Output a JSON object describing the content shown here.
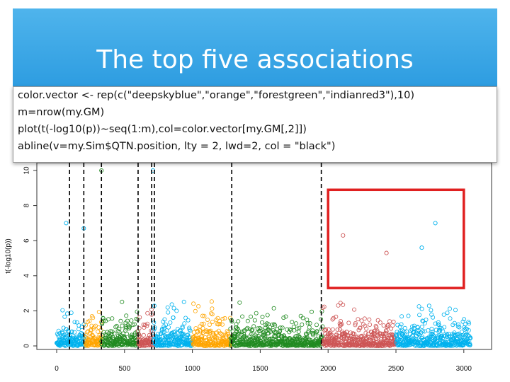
{
  "slide": {
    "title": "The top five associations",
    "code_lines": [
      "color.vector <- rep(c(\"deepskyblue\",\"orange\",\"forestgreen\",\"indianred3\"),10)",
      "m=nrow(my.GM)",
      "plot(t(-log10(p))~seq(1:m),col=color.vector[my.GM[,2]])",
      "abline(v=my.Sim$QTN.position, lty = 2, lwd=2, col = \"black\")"
    ]
  },
  "colors": {
    "header": "#2b9be0",
    "highlight_box": "#e02020",
    "chromosome_colors": [
      "#00b2ee",
      "#ffa500",
      "#228b22",
      "#cd5555"
    ]
  },
  "chart_data": {
    "type": "scatter",
    "ylabel": "t(-log10(p))",
    "xlabel": "",
    "xlim": [
      0,
      3050
    ],
    "ylim": [
      0,
      10
    ],
    "x_ticks": [
      "0",
      "500",
      "1000",
      "1500",
      "2000",
      "2500",
      "3000"
    ],
    "y_ticks": [
      "0",
      "2",
      "4",
      "6",
      "8",
      "10"
    ],
    "qtn_positions": [
      95,
      200,
      330,
      600,
      700,
      720,
      1290,
      1950
    ],
    "chromosome_boundaries": [
      0,
      210,
      330,
      600,
      710,
      1000,
      1280,
      1960,
      2500,
      3050
    ],
    "notable_points": [
      {
        "x": 70,
        "y": 7.0
      },
      {
        "x": 200,
        "y": 6.7
      },
      {
        "x": 330,
        "y": 10.0
      },
      {
        "x": 710,
        "y": 10.0
      },
      {
        "x": 2110,
        "y": 6.3
      },
      {
        "x": 2430,
        "y": 5.3
      },
      {
        "x": 2790,
        "y": 7.0
      },
      {
        "x": 2690,
        "y": 5.6
      }
    ],
    "highlight_box": {
      "x_range": [
        2000,
        3000
      ],
      "y_range": [
        3.3,
        8.9
      ]
    }
  }
}
